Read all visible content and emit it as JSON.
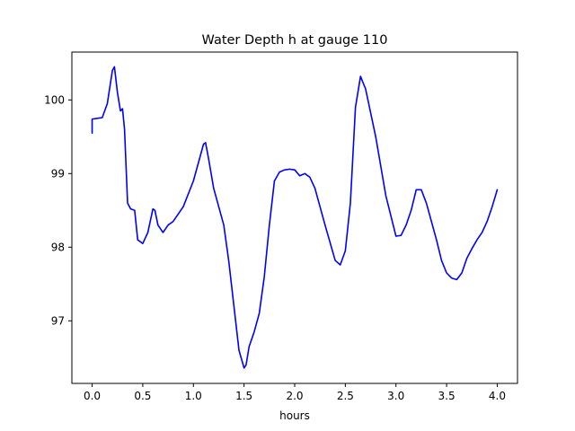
{
  "chart_data": {
    "type": "line",
    "title": "Water Depth h at gauge 110",
    "xlabel": "hours",
    "ylabel": "",
    "xlim": [
      -0.2,
      4.2
    ],
    "ylim": [
      96.15,
      100.65
    ],
    "xticks": [
      0.0,
      0.5,
      1.0,
      1.5,
      2.0,
      2.5,
      3.0,
      3.5,
      4.0
    ],
    "xtick_labels": [
      "0.0",
      "0.5",
      "1.0",
      "1.5",
      "2.0",
      "2.5",
      "3.0",
      "3.5",
      "4.0"
    ],
    "yticks": [
      97,
      98,
      99,
      100
    ],
    "ytick_labels": [
      "97",
      "98",
      "99",
      "100"
    ],
    "grid": false,
    "series": [
      {
        "color": "#0000ff",
        "x": [
          0.0,
          0.0,
          0.05,
          0.1,
          0.15,
          0.2,
          0.22,
          0.25,
          0.28,
          0.3,
          0.32,
          0.35,
          0.38,
          0.42,
          0.45,
          0.5,
          0.55,
          0.6,
          0.62,
          0.65,
          0.7,
          0.75,
          0.8,
          0.9,
          1.0,
          1.05,
          1.1,
          1.12,
          1.15,
          1.2,
          1.3,
          1.35,
          1.4,
          1.45,
          1.5,
          1.52,
          1.55,
          1.6,
          1.65,
          1.7,
          1.75,
          1.8,
          1.85,
          1.9,
          1.95,
          2.0,
          2.05,
          2.1,
          2.15,
          2.2,
          2.3,
          2.4,
          2.45,
          2.5,
          2.55,
          2.6,
          2.65,
          2.7,
          2.8,
          2.9,
          3.0,
          3.05,
          3.1,
          3.15,
          3.2,
          3.25,
          3.3,
          3.35,
          3.4,
          3.45,
          3.5,
          3.55,
          3.6,
          3.65,
          3.7,
          3.75,
          3.8,
          3.85,
          3.9,
          3.95,
          4.0
        ],
        "y": [
          99.55,
          99.74,
          99.75,
          99.76,
          99.95,
          100.4,
          100.45,
          100.1,
          99.85,
          99.88,
          99.6,
          98.6,
          98.52,
          98.5,
          98.1,
          98.05,
          98.2,
          98.52,
          98.5,
          98.3,
          98.2,
          98.3,
          98.35,
          98.55,
          98.9,
          99.15,
          99.4,
          99.42,
          99.2,
          98.8,
          98.3,
          97.8,
          97.2,
          96.6,
          96.36,
          96.4,
          96.65,
          96.85,
          97.1,
          97.6,
          98.3,
          98.9,
          99.02,
          99.05,
          99.06,
          99.05,
          98.97,
          99.0,
          98.95,
          98.8,
          98.3,
          97.82,
          97.76,
          97.95,
          98.6,
          99.9,
          100.32,
          100.15,
          99.5,
          98.7,
          98.15,
          98.16,
          98.3,
          98.5,
          98.78,
          98.78,
          98.6,
          98.35,
          98.1,
          97.82,
          97.65,
          97.58,
          97.56,
          97.65,
          97.85,
          97.98,
          98.1,
          98.2,
          98.35,
          98.55,
          98.78
        ]
      }
    ]
  }
}
